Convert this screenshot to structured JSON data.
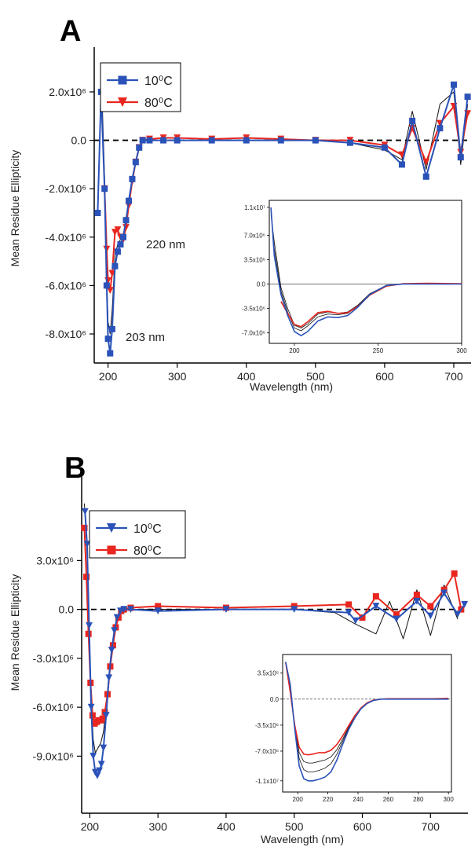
{
  "figure": {
    "panels": [
      "A",
      "B"
    ]
  },
  "colors": {
    "blue": "#2a52b8",
    "red": "#e8261f",
    "black": "#111111"
  },
  "chart_data": [
    {
      "panel": "A",
      "type": "line",
      "xlabel": "Wavelength (nm)",
      "ylabel": "Mean Residue Ellipticity",
      "xlim": [
        180,
        725
      ],
      "ylim": [
        -9200000,
        3200000
      ],
      "xticks": [
        200,
        300,
        400,
        500,
        600,
        700
      ],
      "yticks": [
        -8000000,
        -6000000,
        -4000000,
        -2000000,
        0,
        2000000
      ],
      "ytick_labels": [
        "-8.0x10⁶",
        "-6.0x10⁶",
        "-4.0x10⁶",
        "-2.0x10⁶",
        "0.0",
        "2.0x10⁶"
      ],
      "legend_position": "top-left",
      "annotations": [
        "220 nm",
        "203 nm"
      ],
      "series": [
        {
          "name": "10⁰C",
          "color": "#2a52b8",
          "marker": "square",
          "x": [
            185,
            190,
            195,
            198,
            200,
            203,
            206,
            210,
            214,
            218,
            222,
            226,
            230,
            235,
            240,
            245,
            250,
            260,
            280,
            300,
            350,
            400,
            450,
            500,
            550,
            600,
            625,
            640,
            660,
            680,
            700,
            710,
            720
          ],
          "y": [
            -3000000,
            2000000,
            -2000000,
            -6000000,
            -8200000,
            -8800000,
            -7800000,
            -5200000,
            -4600000,
            -4300000,
            -4000000,
            -3300000,
            -2500000,
            -1600000,
            -900000,
            -300000,
            0,
            0,
            0,
            0,
            0,
            0,
            0,
            0,
            -100000,
            -300000,
            -1000000,
            800000,
            -1500000,
            500000,
            2300000,
            -700000,
            1800000
          ]
        },
        {
          "name": "80⁰C",
          "color": "#e8261f",
          "marker": "triangle-down",
          "x": [
            195,
            198,
            200,
            203,
            206,
            210,
            214,
            218,
            222,
            226,
            230,
            235,
            240,
            245,
            250,
            260,
            280,
            300,
            350,
            400,
            450,
            500,
            550,
            600,
            625,
            640,
            660,
            680,
            700,
            710,
            720
          ],
          "y": [
            -2000000,
            -4500000,
            -5800000,
            -6200000,
            -5500000,
            -3800000,
            -3700000,
            -4000000,
            -4100000,
            -3600000,
            -2700000,
            -1700000,
            -900000,
            -300000,
            0,
            50000,
            100000,
            100000,
            50000,
            100000,
            50000,
            0,
            0,
            -200000,
            -600000,
            500000,
            -900000,
            700000,
            1400000,
            -500000,
            1100000
          ]
        },
        {
          "name": "",
          "color": "#111111",
          "marker": "none",
          "x": [
            190,
            195,
            198,
            200,
            203,
            206,
            210,
            214,
            218,
            222,
            226,
            230,
            235,
            240,
            245,
            250,
            260,
            300,
            400,
            500,
            550,
            600,
            625,
            640,
            660,
            680,
            700,
            710,
            720
          ],
          "y": [
            3000000,
            -1500000,
            -5500000,
            -7500000,
            -8000000,
            -7000000,
            -4800000,
            -4300000,
            -4100000,
            -3900000,
            -3300000,
            -2500000,
            -1600000,
            -900000,
            -300000,
            0,
            0,
            0,
            0,
            0,
            -100000,
            -400000,
            -800000,
            1200000,
            -1200000,
            1500000,
            2000000,
            -1000000,
            1500000
          ]
        }
      ],
      "inset": {
        "xlim": [
          185,
          300
        ],
        "ylim": [
          -8500000,
          12000000
        ],
        "xticks": [
          200,
          250,
          300
        ],
        "yticks": [
          -7000000,
          -3500000,
          0,
          3500000,
          7000000,
          11000000
        ],
        "ytick_labels": [
          "-7.0x10⁶",
          "-3.5x10⁶",
          "0.0",
          "3.5x10⁶",
          "7.0x10⁶",
          "1.1x10⁷"
        ],
        "series": [
          {
            "color": "#2a52b8",
            "x": [
              186,
              188,
              192,
              196,
              200,
              204,
              208,
              214,
              220,
              226,
              232,
              238,
              245,
              255,
              265,
              280,
              300
            ],
            "y": [
              11000000,
              4000000,
              -1500000,
              -4500000,
              -6800000,
              -7400000,
              -6800000,
              -5300000,
              -4700000,
              -4800000,
              -4500000,
              -3300000,
              -1500000,
              -200000,
              0,
              0,
              0
            ]
          },
          {
            "color": "#e8261f",
            "x": [
              192,
              196,
              200,
              204,
              208,
              214,
              220,
              226,
              232,
              238,
              245,
              255,
              265,
              280,
              300
            ],
            "y": [
              -2500000,
              -4200000,
              -5800000,
              -6100000,
              -5400000,
              -4100000,
              -3900000,
              -4200000,
              -4100000,
              -3200000,
              -1600000,
              -300000,
              50000,
              100000,
              50000
            ]
          },
          {
            "color": "#111111",
            "x": [
              186,
              188,
              192,
              196,
              200,
              204,
              208,
              214,
              220,
              226,
              232,
              238,
              245,
              255,
              265,
              280,
              300
            ],
            "y": [
              10500000,
              5000000,
              -1000000,
              -4000000,
              -6300000,
              -6700000,
              -6000000,
              -4700000,
              -4300000,
              -4400000,
              -4200000,
              -3100000,
              -1400000,
              -200000,
              0,
              0,
              0
            ]
          },
          {
            "color": "#111111",
            "x": [
              186,
              188,
              192,
              196,
              200,
              204,
              208,
              214,
              220,
              226,
              232,
              238,
              245,
              255,
              265,
              280,
              300
            ],
            "y": [
              10000000,
              6000000,
              -500000,
              -3500000,
              -5900000,
              -6300000,
              -5700000,
              -4300000,
              -4000000,
              -4200000,
              -4000000,
              -3000000,
              -1400000,
              -200000,
              0,
              0,
              0
            ]
          }
        ]
      }
    },
    {
      "panel": "B",
      "type": "line",
      "xlabel": "Wavelength (nm)",
      "ylabel": "Mean Residue Ellipticity",
      "xlim": [
        188,
        755
      ],
      "ylim": [
        -12500000,
        7500000
      ],
      "xticks": [
        200,
        300,
        400,
        500,
        600,
        700
      ],
      "yticks": [
        -9000000,
        -6000000,
        -3000000,
        0,
        3000000
      ],
      "ytick_labels": [
        "-9.0x10⁶",
        "-6.0x10⁶",
        "-3.0x10⁶",
        "0.0",
        "3.0x10⁶"
      ],
      "legend_position": "top-left",
      "series": [
        {
          "name": "10⁰C",
          "color": "#2a52b8",
          "marker": "triangle-down",
          "x": [
            193,
            196,
            199,
            202,
            205,
            208,
            211,
            214,
            217,
            220,
            224,
            228,
            232,
            236,
            240,
            245,
            250,
            260,
            300,
            400,
            500,
            580,
            590,
            620,
            650,
            680,
            700,
            720,
            740,
            750
          ],
          "y": [
            6000000,
            4000000,
            -1000000,
            -6000000,
            -9000000,
            -10000000,
            -10200000,
            -9900000,
            -9500000,
            -8500000,
            -6500000,
            -4200000,
            -2500000,
            -1300000,
            -500000,
            -100000,
            0,
            0,
            -100000,
            0,
            0,
            -200000,
            -700000,
            200000,
            -600000,
            500000,
            -400000,
            1000000,
            -300000,
            300000
          ]
        },
        {
          "name": "80⁰C",
          "color": "#e8261f",
          "marker": "square",
          "x": [
            192,
            195,
            198,
            201,
            204,
            207,
            210,
            213,
            216,
            219,
            222,
            226,
            230,
            234,
            238,
            242,
            246,
            250,
            260,
            300,
            400,
            500,
            580,
            600,
            620,
            650,
            680,
            700,
            720,
            735,
            745
          ],
          "y": [
            5000000,
            2000000,
            -1500000,
            -4500000,
            -6500000,
            -7000000,
            -6900000,
            -6800000,
            -6800000,
            -6700000,
            -6300000,
            -5200000,
            -3500000,
            -2200000,
            -1100000,
            -500000,
            -100000,
            0,
            100000,
            200000,
            100000,
            200000,
            300000,
            -500000,
            800000,
            -300000,
            900000,
            200000,
            1200000,
            2200000,
            0
          ]
        },
        {
          "name": "",
          "color": "#111111",
          "marker": "none",
          "x": [
            192,
            196,
            199,
            202,
            205,
            208,
            212,
            216,
            220,
            224,
            228,
            232,
            236,
            240,
            246,
            250,
            260,
            300,
            400,
            500,
            560,
            590,
            620,
            640,
            660,
            680,
            700,
            720,
            740
          ],
          "y": [
            6500000,
            3500000,
            -1200000,
            -5500000,
            -8000000,
            -8800000,
            -8500000,
            -8200000,
            -7500000,
            -6000000,
            -4000000,
            -2400000,
            -1200000,
            -500000,
            -100000,
            0,
            0,
            0,
            0,
            0,
            -200000,
            -900000,
            -1500000,
            500000,
            -1800000,
            1200000,
            -1600000,
            1500000,
            -600000
          ]
        }
      ],
      "inset": {
        "xlim": [
          190,
          302
        ],
        "ylim": [
          -12500000,
          6000000
        ],
        "xticks": [
          200,
          220,
          240,
          260,
          280,
          300
        ],
        "yticks": [
          -11000000,
          -7000000,
          -3500000,
          0,
          3500000
        ],
        "ytick_labels": [
          "-1.1x10⁷",
          "-7.0x10⁶",
          "-3.5x10⁶",
          "0.0",
          "3.5x10⁶"
        ],
        "series": [
          {
            "color": "#2a52b8",
            "x": [
              192,
              195,
              198,
              201,
              204,
              207,
              210,
              214,
              218,
              222,
              226,
              230,
              234,
              238,
              242,
              246,
              250,
              255,
              260,
              270,
              280,
              290,
              300
            ],
            "y": [
              5000000,
              2000000,
              -4000000,
              -9000000,
              -10700000,
              -11000000,
              -11000000,
              -10800000,
              -10500000,
              -9800000,
              -8200000,
              -6000000,
              -4000000,
              -2500000,
              -1300000,
              -600000,
              -200000,
              0,
              0,
              0,
              0,
              0,
              0
            ]
          },
          {
            "color": "#e8261f",
            "x": [
              192,
              195,
              198,
              201,
              204,
              207,
              210,
              214,
              218,
              222,
              226,
              230,
              234,
              238,
              242,
              246,
              250,
              255,
              260,
              270,
              280,
              290,
              300
            ],
            "y": [
              5000000,
              1000000,
              -3500000,
              -6500000,
              -7400000,
              -7500000,
              -7400000,
              -7200000,
              -7200000,
              -6900000,
              -6100000,
              -4900000,
              -3500000,
              -2200000,
              -1200000,
              -500000,
              -150000,
              0,
              50000,
              50000,
              50000,
              50000,
              100000
            ]
          },
          {
            "color": "#111111",
            "x": [
              192,
              195,
              198,
              201,
              204,
              207,
              210,
              214,
              218,
              222,
              226,
              230,
              234,
              238,
              242,
              246,
              250,
              255,
              260,
              270,
              280,
              290,
              300
            ],
            "y": [
              5000000,
              1500000,
              -3800000,
              -8000000,
              -9500000,
              -9800000,
              -9800000,
              -9600000,
              -9300000,
              -8700000,
              -7400000,
              -5600000,
              -3800000,
              -2400000,
              -1300000,
              -550000,
              -180000,
              0,
              0,
              0,
              0,
              0,
              0
            ]
          },
          {
            "color": "#111111",
            "x": [
              192,
              195,
              198,
              201,
              204,
              207,
              210,
              214,
              218,
              222,
              226,
              230,
              234,
              238,
              242,
              246,
              250,
              255,
              260,
              270,
              280,
              290,
              300
            ],
            "y": [
              5000000,
              1300000,
              -3600000,
              -7200000,
              -8400000,
              -8600000,
              -8600000,
              -8400000,
              -8200000,
              -7800000,
              -6800000,
              -5300000,
              -3700000,
              -2300000,
              -1250000,
              -520000,
              -160000,
              0,
              0,
              0,
              0,
              0,
              0
            ]
          }
        ]
      }
    }
  ]
}
